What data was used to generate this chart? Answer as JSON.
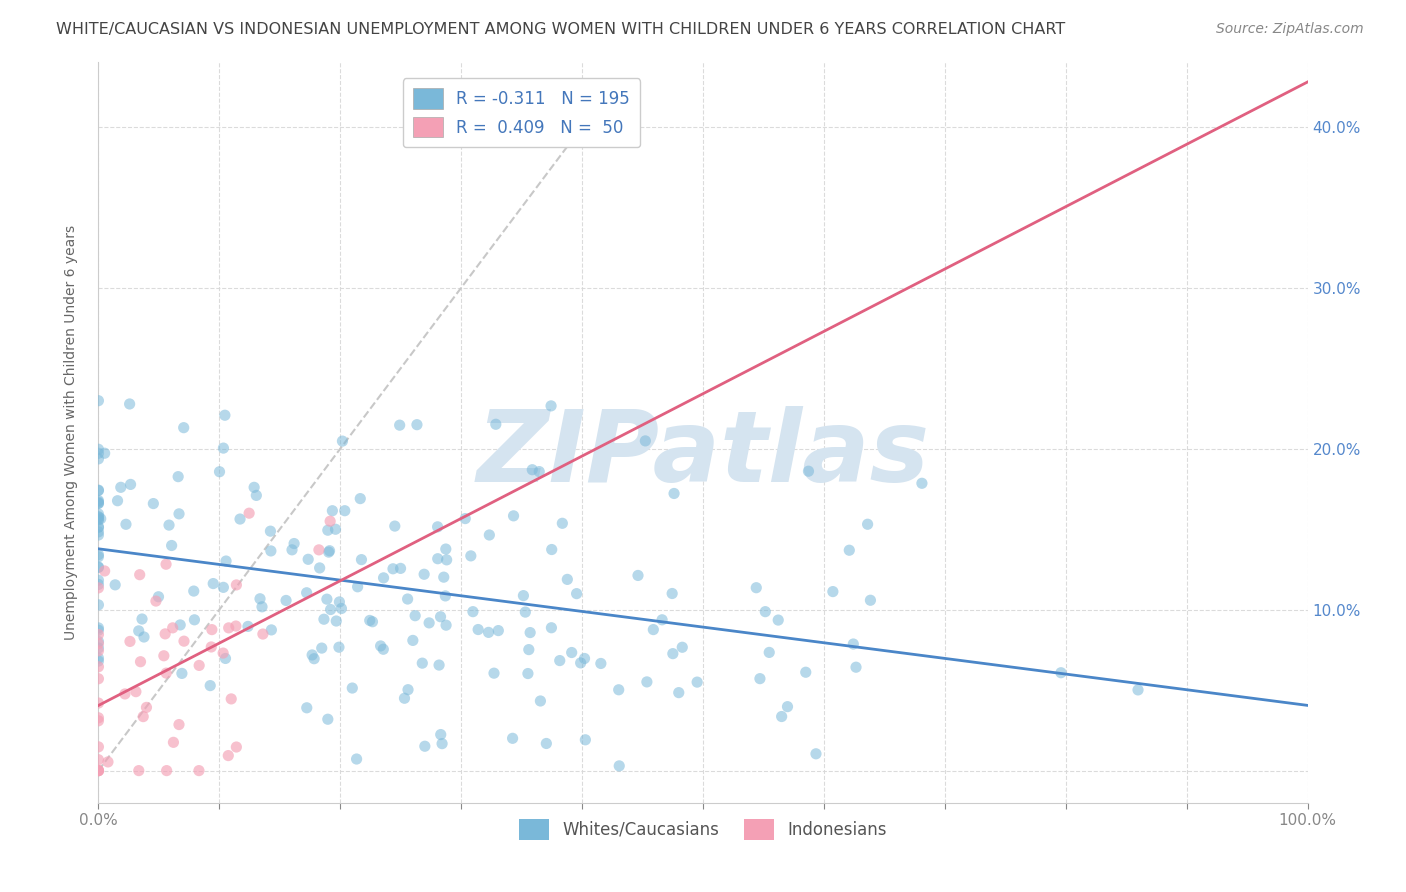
{
  "title": "WHITE/CAUCASIAN VS INDONESIAN UNEMPLOYMENT AMONG WOMEN WITH CHILDREN UNDER 6 YEARS CORRELATION CHART",
  "source": "Source: ZipAtlas.com",
  "ylabel": "Unemployment Among Women with Children Under 6 years",
  "xlim": [
    0.0,
    1.0
  ],
  "ylim": [
    -0.02,
    0.44
  ],
  "xticks": [
    0.0,
    0.1,
    0.2,
    0.3,
    0.4,
    0.5,
    0.6,
    0.7,
    0.8,
    0.9,
    1.0
  ],
  "yticks": [
    0.0,
    0.1,
    0.2,
    0.3,
    0.4
  ],
  "xticklabels": [
    "0.0%",
    "",
    "",
    "",
    "",
    "",
    "",
    "",
    "",
    "",
    "100.0%"
  ],
  "yticklabels_right": [
    "",
    "10.0%",
    "20.0%",
    "30.0%",
    "40.0%"
  ],
  "blue_color": "#7ab8d9",
  "pink_color": "#f4a0b5",
  "blue_line_color": "#4a86c8",
  "pink_line_color": "#e06080",
  "diagonal_color": "#c8c8c8",
  "watermark_color": "#d5e4f0",
  "watermark_text": "ZIPatlas",
  "legend_whites": "Whites/Caucasians",
  "legend_indonesians": "Indonesians",
  "blue_R": -0.311,
  "blue_N": 195,
  "pink_R": 0.409,
  "pink_N": 50,
  "grid_color": "#d8d8d8",
  "background_color": "#ffffff",
  "title_color": "#444444",
  "source_color": "#888888",
  "tick_color_right": "#5588cc",
  "tick_color_bottom": "#888888",
  "ylabel_color": "#666666",
  "title_fontsize": 11.5,
  "source_fontsize": 10,
  "axis_label_fontsize": 10,
  "tick_fontsize": 11,
  "legend_fontsize": 12,
  "watermark_fontsize": 72,
  "seed_blue": 77,
  "seed_pink": 88
}
